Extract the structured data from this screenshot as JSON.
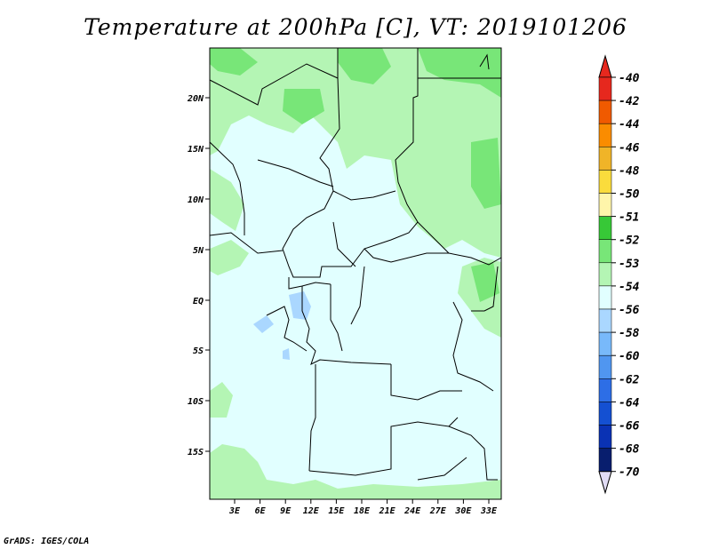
{
  "title": "Temperature at 200hPa [C], VT: 2019101206",
  "credit": "GrADS: IGES/COLA",
  "map": {
    "lat_labels": [
      "20N",
      "15N",
      "10N",
      "5N",
      "EQ",
      "5S",
      "10S",
      "15S"
    ],
    "lon_labels": [
      "3E",
      "6E",
      "9E",
      "12E",
      "15E",
      "18E",
      "21E",
      "24E",
      "27E",
      "30E",
      "33E"
    ]
  },
  "colorbar": {
    "labels": [
      "-40",
      "-42",
      "-44",
      "-46",
      "-48",
      "-50",
      "-51",
      "-52",
      "-53",
      "-54",
      "-56",
      "-58",
      "-60",
      "-62",
      "-64",
      "-66",
      "-68",
      "-70"
    ],
    "colors": [
      "#f0f0f0",
      "#e6281e",
      "#f05a00",
      "#fa8c00",
      "#f0b428",
      "#fadc3c",
      "#fff5aa",
      "#37c837",
      "#78e678",
      "#b4f5b4",
      "#e1ffff",
      "#aad7ff",
      "#78b9fa",
      "#5096f0",
      "#2d6ee6",
      "#1450d2",
      "#0a32b4",
      "#081e6e",
      "#000060",
      "#e1dcf5"
    ],
    "top_color": "#e6281e",
    "bottom_color": "#e1dcf5"
  }
}
